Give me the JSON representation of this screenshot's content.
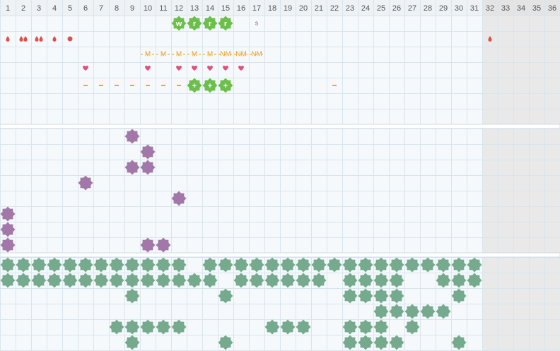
{
  "days": [
    1,
    2,
    3,
    4,
    5,
    6,
    7,
    8,
    9,
    10,
    11,
    12,
    13,
    14,
    15,
    16,
    17,
    18,
    19,
    20,
    21,
    22,
    23,
    24,
    25,
    26,
    27,
    28,
    29,
    30,
    31,
    32,
    33,
    34,
    35,
    36
  ],
  "grey_from": 32,
  "badges": [
    {
      "day": 12,
      "text": "w"
    },
    {
      "day": 13,
      "text": "r"
    },
    {
      "day": 14,
      "text": "r"
    },
    {
      "day": 15,
      "text": "r"
    }
  ],
  "sign": {
    "day": 17,
    "text": "s"
  },
  "drops": [
    {
      "day": 1,
      "count": 1
    },
    {
      "day": 2,
      "count": 2
    },
    {
      "day": 3,
      "count": 2
    },
    {
      "day": 4,
      "count": 1
    },
    {
      "day": 32,
      "count": 1
    }
  ],
  "dots": [
    5
  ],
  "marks": [
    {
      "day": 10,
      "text": "M"
    },
    {
      "day": 11,
      "text": "M"
    },
    {
      "day": 12,
      "text": "M"
    },
    {
      "day": 13,
      "text": "M"
    },
    {
      "day": 14,
      "text": "M"
    },
    {
      "day": 15,
      "text": "NM"
    },
    {
      "day": 16,
      "text": "NM"
    },
    {
      "day": 17,
      "text": "NM"
    }
  ],
  "hearts": [
    6,
    10,
    12,
    13,
    14,
    15,
    16
  ],
  "dashes": [
    6,
    7,
    8,
    9,
    10,
    11,
    12,
    22
  ],
  "plus": [
    {
      "day": 13,
      "text": "+"
    },
    {
      "day": 14,
      "text": "+"
    },
    {
      "day": 15,
      "text": "+"
    }
  ],
  "purple_rows": [
    [
      9
    ],
    [
      10
    ],
    [
      9,
      10
    ],
    [
      6
    ],
    [
      12
    ],
    [
      1
    ],
    [
      1
    ],
    [
      1,
      10,
      11
    ]
  ],
  "green_rows": [
    [
      1,
      2,
      3,
      4,
      5,
      6,
      7,
      8,
      9,
      10,
      11,
      12,
      14,
      15,
      16,
      17,
      18,
      19,
      20,
      21,
      22,
      23,
      24,
      25,
      26,
      27,
      28,
      29,
      30,
      31
    ],
    [
      1,
      2,
      3,
      4,
      5,
      6,
      7,
      8,
      9,
      10,
      11,
      12,
      13,
      14,
      16,
      17,
      18,
      19,
      20,
      21,
      23,
      24,
      25,
      26,
      29,
      30,
      31
    ],
    [
      9,
      15,
      23,
      24,
      25,
      26,
      30
    ],
    [
      25,
      26,
      27,
      28,
      29
    ],
    [
      8,
      9,
      10,
      11,
      12,
      18,
      19,
      20,
      23,
      24,
      25,
      27
    ],
    [
      9,
      15,
      23,
      24,
      25,
      26,
      30
    ]
  ]
}
